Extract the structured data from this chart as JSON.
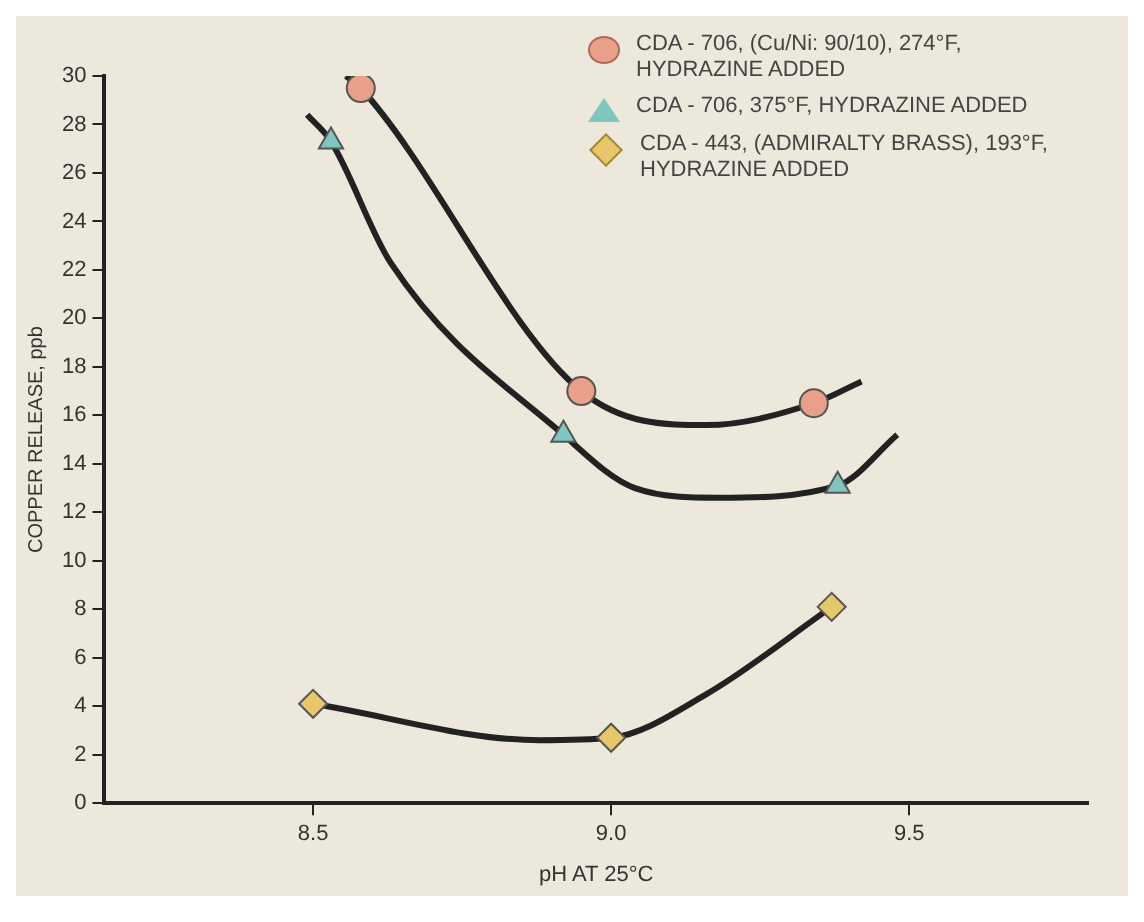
{
  "chart_data": {
    "type": "scatter",
    "xlabel": "pH AT 25°C",
    "ylabel": "COPPER RELEASE, ppb",
    "xlim": [
      8.15,
      9.8
    ],
    "xticks": [
      {
        "value": 8.5,
        "label": "8.5"
      },
      {
        "value": 9,
        "label": "9.0"
      },
      {
        "value": 9.5,
        "label": "9.5"
      }
    ],
    "ylim": [
      0,
      30
    ],
    "yticks": [
      0,
      2,
      4,
      6,
      8,
      10,
      12,
      14,
      16,
      18,
      20,
      22,
      24,
      26,
      28,
      30
    ],
    "grid": false,
    "legend": "top right",
    "series": [
      {
        "type": "line",
        "color": "#222222",
        "marker": "none",
        "x": [
          8.555,
          8.58,
          8.95,
          9.16,
          9.34,
          9.42
        ],
        "values": [
          30,
          29.5,
          17.0,
          15.6,
          16.5,
          17.4
        ]
      },
      {
        "type": "line",
        "color": "#222222",
        "marker": "none",
        "x": [
          8.49,
          8.53,
          8.63,
          8.92,
          9.04,
          9.18,
          9.38,
          9.48
        ],
        "values": [
          28.4,
          27.3,
          22.3,
          15.2,
          13.0,
          12.6,
          13.1,
          15.2
        ]
      },
      {
        "type": "line",
        "color": "#222222",
        "marker": "none",
        "x": [
          8.5,
          8.88,
          9.0,
          9.16,
          9.37
        ],
        "values": [
          4.1,
          2.6,
          2.7,
          4.5,
          8.1
        ]
      },
      {
        "type": "scatter",
        "name": "CDA - 706, (Cu/Ni: 90/10), 274°F, HYDRAZINE ADDED",
        "color": "#e8a08a",
        "marker": "circle",
        "x": [
          8.58,
          8.95,
          9.34
        ],
        "values": [
          29.5,
          17.0,
          16.5
        ]
      },
      {
        "type": "scatter",
        "name": "CDA - 706, 375°F, HYDRAZINE ADDED",
        "color": "#7fc6bf",
        "marker": "triangle",
        "x": [
          8.53,
          8.92,
          9.38
        ],
        "values": [
          27.3,
          15.2,
          13.1
        ]
      },
      {
        "type": "scatter",
        "name": "CDA - 443, (ADMIRALTY BRASS), 193°F, HYDRAZINE ADDED",
        "color": "#e8c66a",
        "marker": "diamond",
        "x": [
          8.5,
          9.0,
          9.37
        ],
        "values": [
          4.1,
          2.7,
          8.1
        ]
      }
    ]
  }
}
